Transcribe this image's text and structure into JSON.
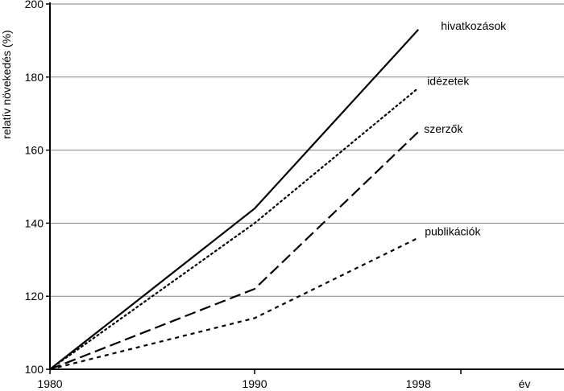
{
  "chart_data": {
    "type": "line",
    "title": "",
    "xlabel": "év",
    "ylabel": "relatív növekedés (%)",
    "xlim": [
      1980,
      2005
    ],
    "ylim": [
      100,
      200
    ],
    "x_ticks": [
      1980,
      1990,
      1998
    ],
    "y_ticks": [
      100,
      120,
      140,
      160,
      180,
      200
    ],
    "grid": {
      "horizontal": true,
      "vertical": false
    },
    "legend": "inline labels at line ends",
    "series": [
      {
        "name": "hivatkozások",
        "x": [
          1980,
          1990,
          1998
        ],
        "y": [
          100,
          144,
          193
        ],
        "dash": "solid"
      },
      {
        "name": "idézetek",
        "x": [
          1980,
          1990,
          1998
        ],
        "y": [
          100,
          140,
          177
        ],
        "dash": "dotted"
      },
      {
        "name": "szerzők",
        "x": [
          1980,
          1990,
          1998
        ],
        "y": [
          100,
          122,
          165
        ],
        "dash": "long-dash"
      },
      {
        "name": "publikációk",
        "x": [
          1980,
          1990,
          1998
        ],
        "y": [
          100,
          114,
          136
        ],
        "dash": "short-dash"
      }
    ]
  }
}
